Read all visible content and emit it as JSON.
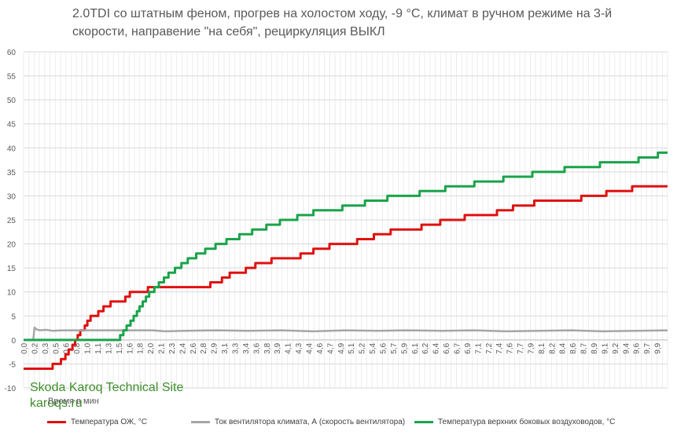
{
  "chart_data": {
    "type": "line",
    "title": "2.0TDI со штатным феном, прогрев на холостом ходу, -9 °C, климат в ручном режиме на 3-й скорости, направение \"на себя\", рециркуляция ВЫКЛ",
    "xlabel": "Время в мин",
    "ylabel": "",
    "xlim": [
      0,
      10
    ],
    "ylim": [
      -10,
      60
    ],
    "yticks": [
      -10,
      -5,
      0,
      5,
      10,
      15,
      20,
      25,
      30,
      35,
      40,
      45,
      50,
      55,
      60
    ],
    "xticks": [
      "0,0",
      "0,2",
      "0,3",
      "0,5",
      "0,6",
      "0,8",
      "1,0",
      "1,1",
      "1,3",
      "1,5",
      "1,6",
      "1,8",
      "2,0",
      "2,1",
      "2,3",
      "2,4",
      "2,6",
      "2,8",
      "2,9",
      "3,1",
      "3,3",
      "3,4",
      "3,6",
      "3,8",
      "3,9",
      "4,1",
      "4,3",
      "4,4",
      "4,6",
      "4,7",
      "4,9",
      "5,1",
      "5,2",
      "5,4",
      "5,6",
      "5,7",
      "5,9",
      "6,1",
      "6,2",
      "6,4",
      "6,6",
      "6,7",
      "6,9",
      "7,1",
      "7,2",
      "7,4",
      "7,6",
      "7,7",
      "7,9",
      "8,1",
      "8,2",
      "8,4",
      "8,6",
      "8,7",
      "8,9",
      "9,1",
      "9,2",
      "9,4",
      "9,6",
      "9,7",
      "9,9"
    ],
    "grid": true,
    "legend_position": "bottom",
    "series": [
      {
        "name": "Температура ОЖ, °C",
        "color": "#e01010",
        "points": [
          [
            0,
            -6
          ],
          [
            0.45,
            -6
          ],
          [
            0.45,
            -5
          ],
          [
            0.58,
            -5
          ],
          [
            0.58,
            -4
          ],
          [
            0.65,
            -4
          ],
          [
            0.65,
            -3
          ],
          [
            0.7,
            -3
          ],
          [
            0.7,
            -2
          ],
          [
            0.76,
            -2
          ],
          [
            0.76,
            -1
          ],
          [
            0.8,
            -1
          ],
          [
            0.8,
            0
          ],
          [
            0.84,
            0
          ],
          [
            0.84,
            1
          ],
          [
            0.88,
            1
          ],
          [
            0.88,
            2
          ],
          [
            0.95,
            2
          ],
          [
            0.95,
            3
          ],
          [
            0.99,
            3
          ],
          [
            0.99,
            4
          ],
          [
            1.04,
            4
          ],
          [
            1.04,
            5
          ],
          [
            1.16,
            5
          ],
          [
            1.16,
            6
          ],
          [
            1.24,
            6
          ],
          [
            1.24,
            7
          ],
          [
            1.35,
            7
          ],
          [
            1.35,
            8
          ],
          [
            1.58,
            8
          ],
          [
            1.58,
            9
          ],
          [
            1.65,
            9
          ],
          [
            1.65,
            10
          ],
          [
            1.93,
            10
          ],
          [
            1.93,
            11
          ],
          [
            2.9,
            11
          ],
          [
            2.9,
            12
          ],
          [
            3.08,
            12
          ],
          [
            3.08,
            13
          ],
          [
            3.2,
            13
          ],
          [
            3.2,
            14
          ],
          [
            3.45,
            14
          ],
          [
            3.45,
            15
          ],
          [
            3.6,
            15
          ],
          [
            3.6,
            16
          ],
          [
            3.85,
            16
          ],
          [
            3.85,
            17
          ],
          [
            4.3,
            17
          ],
          [
            4.3,
            18
          ],
          [
            4.5,
            18
          ],
          [
            4.5,
            19
          ],
          [
            4.75,
            19
          ],
          [
            4.75,
            20
          ],
          [
            5.18,
            20
          ],
          [
            5.18,
            21
          ],
          [
            5.44,
            21
          ],
          [
            5.44,
            22
          ],
          [
            5.7,
            22
          ],
          [
            5.7,
            23
          ],
          [
            6.18,
            23
          ],
          [
            6.18,
            24
          ],
          [
            6.47,
            24
          ],
          [
            6.47,
            25
          ],
          [
            6.85,
            25
          ],
          [
            6.85,
            26
          ],
          [
            7.35,
            26
          ],
          [
            7.35,
            27
          ],
          [
            7.6,
            27
          ],
          [
            7.6,
            28
          ],
          [
            7.93,
            28
          ],
          [
            7.93,
            29
          ],
          [
            8.66,
            29
          ],
          [
            8.66,
            30
          ],
          [
            9.05,
            30
          ],
          [
            9.05,
            31
          ],
          [
            9.45,
            31
          ],
          [
            9.45,
            32
          ],
          [
            10,
            32
          ]
        ]
      },
      {
        "name": "Ток вентилятора климата, А (скорость вентилятора)",
        "color": "#a6a6a6",
        "points": [
          [
            0,
            0
          ],
          [
            0.15,
            0
          ],
          [
            0.17,
            2.6
          ],
          [
            0.2,
            2.2
          ],
          [
            0.25,
            2.0
          ],
          [
            0.35,
            2.1
          ],
          [
            0.45,
            1.9
          ],
          [
            0.6,
            2.0
          ],
          [
            1,
            2.0
          ],
          [
            2,
            2.0
          ],
          [
            2.2,
            1.8
          ],
          [
            2.5,
            1.9
          ],
          [
            3,
            2.0
          ],
          [
            3.5,
            1.9
          ],
          [
            4,
            2.0
          ],
          [
            4.5,
            1.8
          ],
          [
            5,
            2.0
          ],
          [
            5.5,
            1.9
          ],
          [
            6,
            2.0
          ],
          [
            6.5,
            1.9
          ],
          [
            7,
            2.0
          ],
          [
            7.5,
            1.8
          ],
          [
            8,
            1.9
          ],
          [
            8.5,
            2.0
          ],
          [
            9,
            1.8
          ],
          [
            9.5,
            1.9
          ],
          [
            10,
            2.0
          ]
        ]
      },
      {
        "name": "Температура верхних боковых воздуховодов, °C",
        "color": "#1aa34a",
        "points": [
          [
            0,
            0
          ],
          [
            1.5,
            0
          ],
          [
            1.5,
            1
          ],
          [
            1.55,
            1
          ],
          [
            1.55,
            2
          ],
          [
            1.6,
            2
          ],
          [
            1.6,
            3
          ],
          [
            1.66,
            3
          ],
          [
            1.66,
            4
          ],
          [
            1.71,
            4
          ],
          [
            1.71,
            5
          ],
          [
            1.76,
            5
          ],
          [
            1.76,
            6
          ],
          [
            1.8,
            6
          ],
          [
            1.8,
            7
          ],
          [
            1.85,
            7
          ],
          [
            1.85,
            8
          ],
          [
            1.9,
            8
          ],
          [
            1.9,
            9
          ],
          [
            1.95,
            9
          ],
          [
            1.95,
            10
          ],
          [
            2.03,
            10
          ],
          [
            2.03,
            11
          ],
          [
            2.1,
            11
          ],
          [
            2.1,
            12
          ],
          [
            2.18,
            12
          ],
          [
            2.18,
            13
          ],
          [
            2.25,
            13
          ],
          [
            2.25,
            14
          ],
          [
            2.35,
            14
          ],
          [
            2.35,
            15
          ],
          [
            2.45,
            15
          ],
          [
            2.45,
            16
          ],
          [
            2.55,
            16
          ],
          [
            2.55,
            17
          ],
          [
            2.68,
            17
          ],
          [
            2.68,
            18
          ],
          [
            2.82,
            18
          ],
          [
            2.82,
            19
          ],
          [
            2.98,
            19
          ],
          [
            2.98,
            20
          ],
          [
            3.15,
            20
          ],
          [
            3.15,
            21
          ],
          [
            3.35,
            21
          ],
          [
            3.35,
            22
          ],
          [
            3.55,
            22
          ],
          [
            3.55,
            23
          ],
          [
            3.77,
            23
          ],
          [
            3.77,
            24
          ],
          [
            3.98,
            24
          ],
          [
            3.98,
            25
          ],
          [
            4.25,
            25
          ],
          [
            4.25,
            26
          ],
          [
            4.5,
            26
          ],
          [
            4.5,
            27
          ],
          [
            4.95,
            27
          ],
          [
            4.95,
            28
          ],
          [
            5.3,
            28
          ],
          [
            5.3,
            29
          ],
          [
            5.65,
            29
          ],
          [
            5.65,
            30
          ],
          [
            6.15,
            30
          ],
          [
            6.15,
            31
          ],
          [
            6.55,
            31
          ],
          [
            6.55,
            32
          ],
          [
            7.0,
            32
          ],
          [
            7.0,
            33
          ],
          [
            7.45,
            33
          ],
          [
            7.45,
            34
          ],
          [
            7.9,
            34
          ],
          [
            7.9,
            35
          ],
          [
            8.4,
            35
          ],
          [
            8.4,
            36
          ],
          [
            8.95,
            36
          ],
          [
            8.95,
            37
          ],
          [
            9.55,
            37
          ],
          [
            9.55,
            38
          ],
          [
            9.85,
            38
          ],
          [
            9.85,
            39
          ],
          [
            10,
            39
          ]
        ]
      }
    ],
    "watermark": {
      "line1": "Skoda Karoq Technical Site",
      "line2": "karoqs.ru"
    }
  }
}
